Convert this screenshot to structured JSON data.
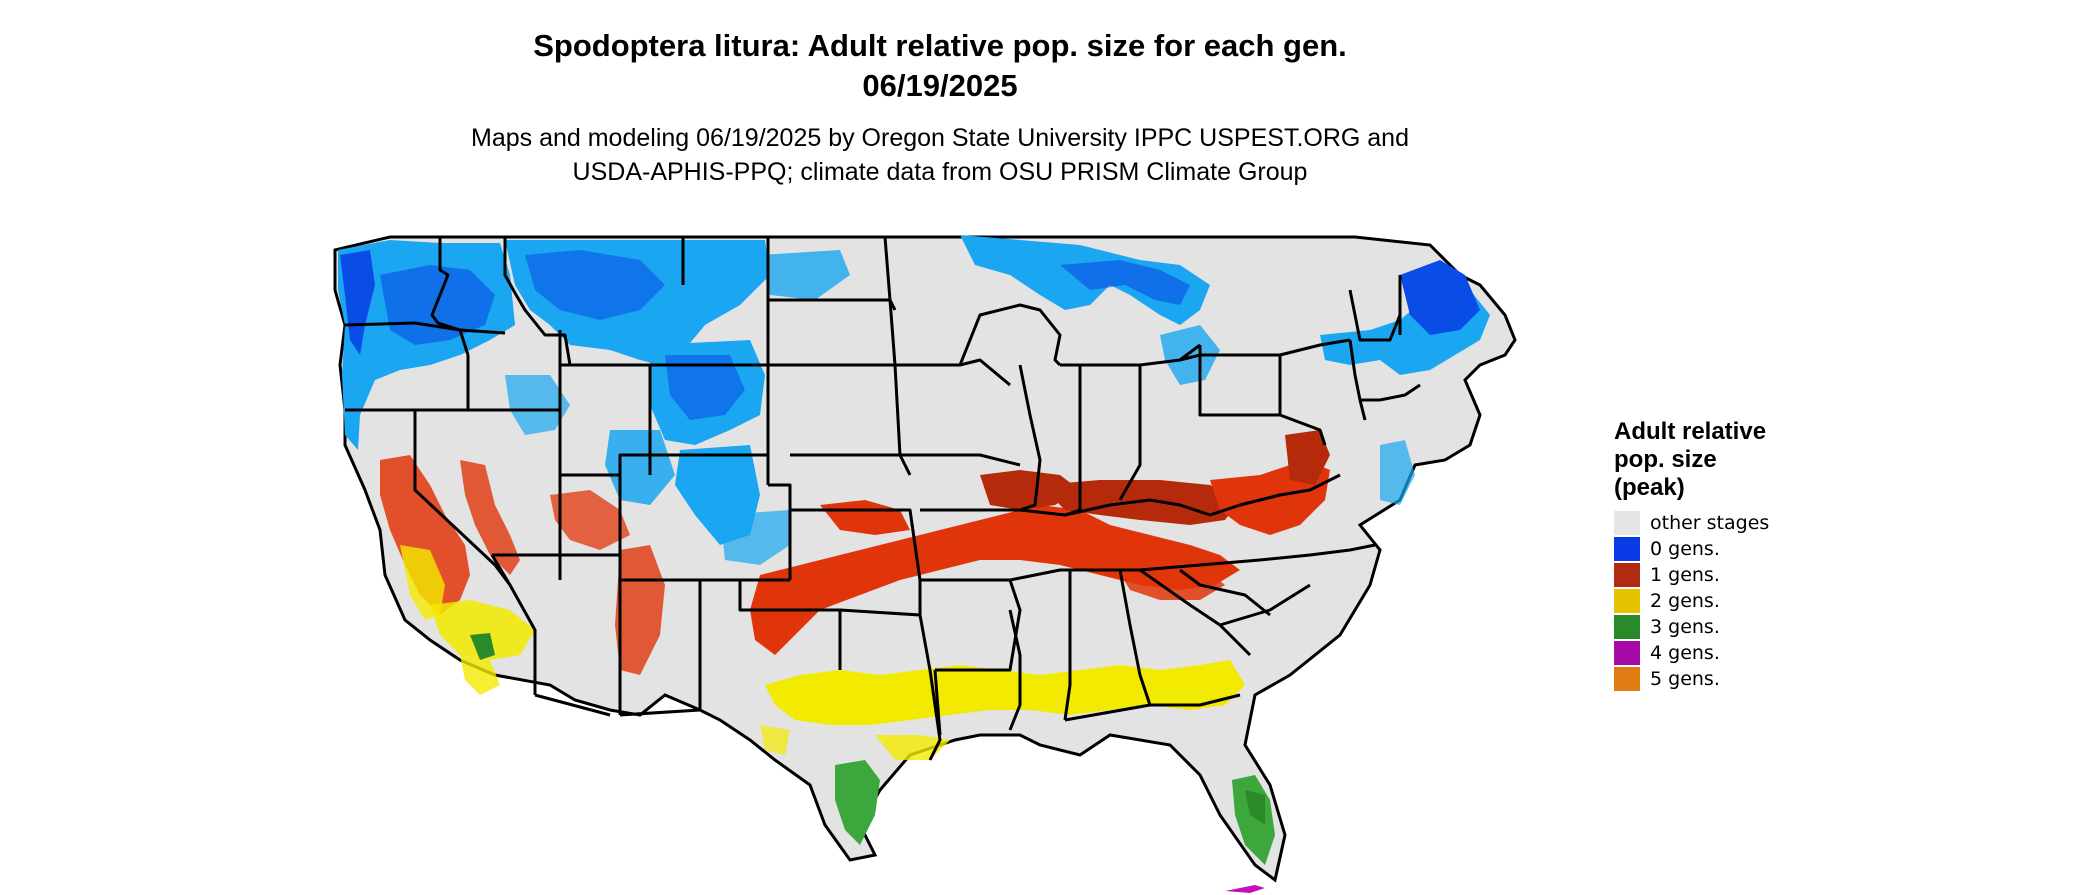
{
  "title": {
    "line1": "Spodoptera litura: Adult relative pop. size for each gen.",
    "line2": "06/19/2025"
  },
  "subtitle": {
    "line1": "Maps and modeling 06/19/2025 by Oregon State University IPPC USPEST.ORG and",
    "line2": "USDA-APHIS-PPQ; climate data from OSU PRISM Climate Group"
  },
  "legend": {
    "title": "Adult relative pop. size (peak)",
    "items": [
      {
        "label": "other stages",
        "color": "#e6e6e6"
      },
      {
        "label": "0 gens.",
        "color": "#0a3be6"
      },
      {
        "label": "1 gens.",
        "color": "#b22a12"
      },
      {
        "label": "2 gens.",
        "color": "#e6c200"
      },
      {
        "label": "3 gens.",
        "color": "#2a8a2a"
      },
      {
        "label": "4 gens.",
        "color": "#a80aa8"
      },
      {
        "label": "5 gens.",
        "color": "#e07a12"
      }
    ]
  },
  "map_colors": {
    "land": "#e3e3e3",
    "blue_light": "#1aa6f0",
    "blue_dark": "#0a4de6",
    "red": "#e0350a",
    "dark_red": "#b52a0a",
    "yellow": "#f2ea00",
    "green": "#3da63d",
    "purple": "#c010c0",
    "border": "#000000"
  }
}
